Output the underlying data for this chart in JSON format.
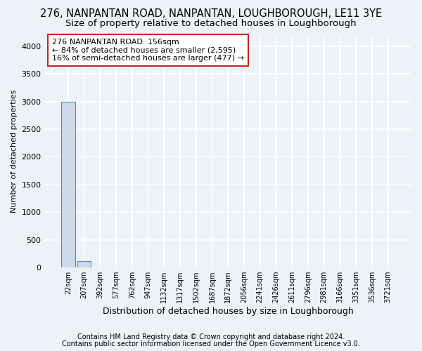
{
  "title": "276, NANPANTAN ROAD, NANPANTAN, LOUGHBOROUGH, LE11 3YE",
  "subtitle": "Size of property relative to detached houses in Loughborough",
  "xlabel": "Distribution of detached houses by size in Loughborough",
  "ylabel": "Number of detached properties",
  "footnote1": "Contains HM Land Registry data © Crown copyright and database right 2024.",
  "footnote2": "Contains public sector information licensed under the Open Government Licence v3.0.",
  "bar_labels": [
    "22sqm",
    "207sqm",
    "392sqm",
    "577sqm",
    "762sqm",
    "947sqm",
    "1132sqm",
    "1317sqm",
    "1502sqm",
    "1687sqm",
    "1872sqm",
    "2056sqm",
    "2241sqm",
    "2426sqm",
    "2611sqm",
    "2796sqm",
    "2981sqm",
    "3166sqm",
    "3351sqm",
    "3536sqm",
    "3721sqm"
  ],
  "bar_values": [
    3000,
    110,
    5,
    2,
    2,
    1,
    1,
    1,
    1,
    1,
    0,
    0,
    0,
    0,
    0,
    0,
    0,
    0,
    0,
    0,
    0
  ],
  "bar_color": "#ccdaeb",
  "bar_edge_color": "#5588bb",
  "annotation_title": "276 NANPANTAN ROAD: 156sqm",
  "annotation_line2": "← 84% of detached houses are smaller (2,595)",
  "annotation_line3": "16% of semi-detached houses are larger (477) →",
  "annotation_box_facecolor": "#ffffff",
  "annotation_box_edgecolor": "#cc2222",
  "ylim": [
    0,
    4200
  ],
  "yticks": [
    0,
    500,
    1000,
    1500,
    2000,
    2500,
    3000,
    3500,
    4000
  ],
  "bg_color": "#eef2f8",
  "plot_bg_color": "#eef2f8",
  "grid_color": "#ffffff",
  "title_fontsize": 10.5,
  "subtitle_fontsize": 9.5,
  "xlabel_fontsize": 9,
  "ylabel_fontsize": 8,
  "tick_fontsize": 8,
  "xtick_fontsize": 7,
  "footnote_fontsize": 7
}
